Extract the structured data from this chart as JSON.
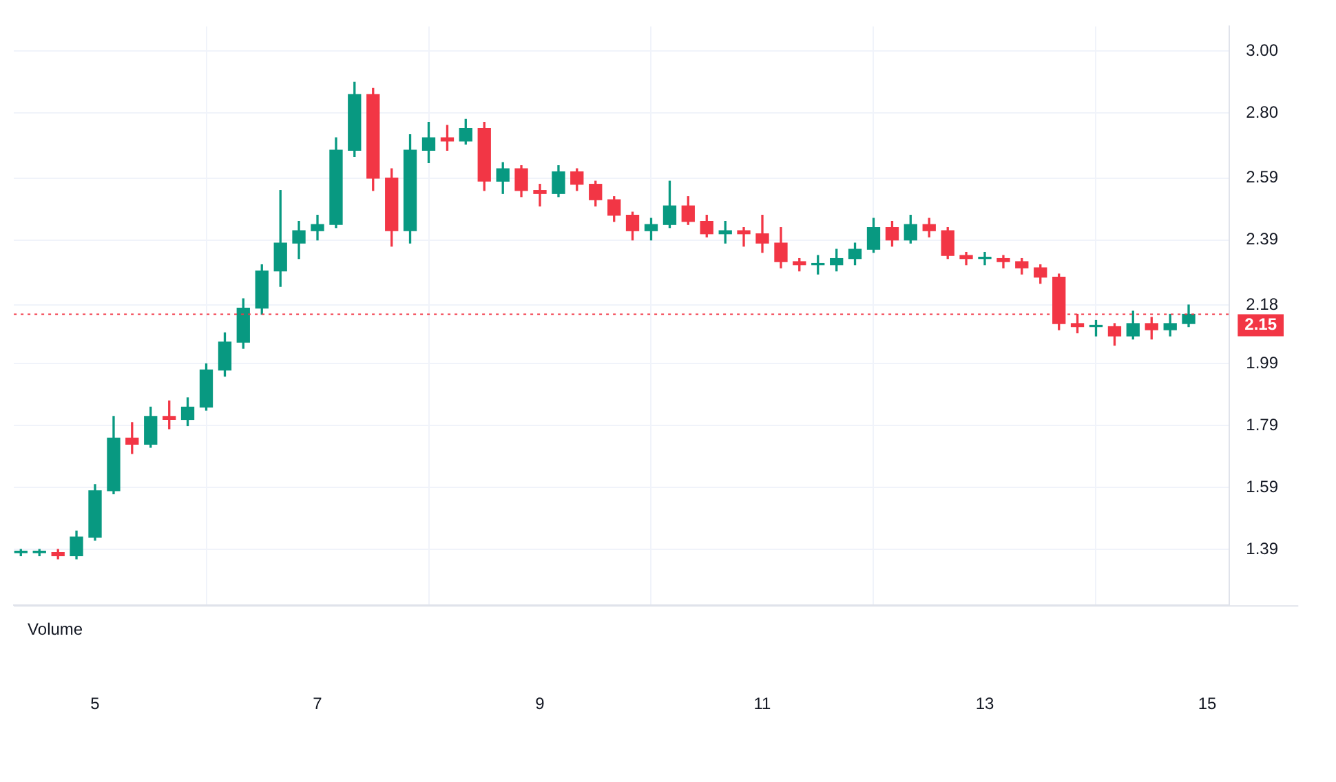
{
  "chart_data": {
    "type": "candlestick",
    "x": [
      4.333,
      4.5,
      4.667,
      4.833,
      5,
      5.167,
      5.333,
      5.5,
      5.667,
      5.833,
      6,
      6.167,
      6.333,
      6.5,
      6.667,
      6.833,
      7,
      7.167,
      7.333,
      7.5,
      7.667,
      7.833,
      8,
      8.167,
      8.333,
      8.5,
      8.667,
      8.833,
      9,
      9.167,
      9.333,
      9.5,
      9.667,
      9.833,
      10,
      10.167,
      10.333,
      10.5,
      10.667,
      10.833,
      11,
      11.167,
      11.333,
      11.5,
      11.667,
      11.833,
      12,
      12.167,
      12.333,
      12.5,
      12.667,
      12.833,
      13,
      13.167,
      13.333,
      13.5,
      13.667,
      13.833,
      14,
      14.167,
      14.333,
      14.5,
      14.667,
      14.833
    ],
    "ohlc": [
      [
        1.38,
        1.39,
        1.37,
        1.38
      ],
      [
        1.38,
        1.39,
        1.37,
        1.38
      ],
      [
        1.38,
        1.39,
        1.36,
        1.37
      ],
      [
        1.37,
        1.45,
        1.36,
        1.43
      ],
      [
        1.43,
        1.6,
        1.42,
        1.58
      ],
      [
        1.58,
        1.82,
        1.57,
        1.75
      ],
      [
        1.75,
        1.8,
        1.7,
        1.73
      ],
      [
        1.73,
        1.85,
        1.72,
        1.82
      ],
      [
        1.82,
        1.87,
        1.78,
        1.81
      ],
      [
        1.81,
        1.88,
        1.79,
        1.85
      ],
      [
        1.85,
        1.99,
        1.84,
        1.97
      ],
      [
        1.97,
        2.09,
        1.95,
        2.06
      ],
      [
        2.06,
        2.2,
        2.04,
        2.17
      ],
      [
        2.17,
        2.31,
        2.15,
        2.29
      ],
      [
        2.29,
        2.55,
        2.24,
        2.38
      ],
      [
        2.38,
        2.45,
        2.33,
        2.42
      ],
      [
        2.42,
        2.47,
        2.39,
        2.44
      ],
      [
        2.44,
        2.72,
        2.43,
        2.68
      ],
      [
        2.68,
        2.9,
        2.66,
        2.86
      ],
      [
        2.86,
        2.88,
        2.55,
        2.59
      ],
      [
        2.59,
        2.62,
        2.37,
        2.42
      ],
      [
        2.42,
        2.73,
        2.38,
        2.68
      ],
      [
        2.68,
        2.77,
        2.64,
        2.72
      ],
      [
        2.72,
        2.76,
        2.68,
        2.71
      ],
      [
        2.71,
        2.78,
        2.7,
        2.75
      ],
      [
        2.75,
        2.77,
        2.55,
        2.58
      ],
      [
        2.58,
        2.64,
        2.54,
        2.62
      ],
      [
        2.62,
        2.63,
        2.53,
        2.55
      ],
      [
        2.55,
        2.57,
        2.5,
        2.54
      ],
      [
        2.54,
        2.63,
        2.53,
        2.61
      ],
      [
        2.61,
        2.62,
        2.55,
        2.57
      ],
      [
        2.57,
        2.58,
        2.5,
        2.52
      ],
      [
        2.52,
        2.53,
        2.45,
        2.47
      ],
      [
        2.47,
        2.48,
        2.39,
        2.42
      ],
      [
        2.42,
        2.46,
        2.39,
        2.44
      ],
      [
        2.44,
        2.58,
        2.43,
        2.5
      ],
      [
        2.5,
        2.53,
        2.44,
        2.45
      ],
      [
        2.45,
        2.47,
        2.4,
        2.41
      ],
      [
        2.41,
        2.45,
        2.38,
        2.42
      ],
      [
        2.42,
        2.43,
        2.37,
        2.41
      ],
      [
        2.41,
        2.47,
        2.35,
        2.38
      ],
      [
        2.38,
        2.43,
        2.3,
        2.32
      ],
      [
        2.32,
        2.33,
        2.29,
        2.31
      ],
      [
        2.31,
        2.34,
        2.28,
        2.31
      ],
      [
        2.31,
        2.36,
        2.29,
        2.33
      ],
      [
        2.33,
        2.38,
        2.31,
        2.36
      ],
      [
        2.36,
        2.46,
        2.35,
        2.43
      ],
      [
        2.43,
        2.45,
        2.37,
        2.39
      ],
      [
        2.39,
        2.47,
        2.38,
        2.44
      ],
      [
        2.44,
        2.46,
        2.4,
        2.42
      ],
      [
        2.42,
        2.43,
        2.33,
        2.34
      ],
      [
        2.34,
        2.35,
        2.31,
        2.33
      ],
      [
        2.33,
        2.35,
        2.31,
        2.33
      ],
      [
        2.33,
        2.34,
        2.3,
        2.32
      ],
      [
        2.32,
        2.33,
        2.28,
        2.3
      ],
      [
        2.3,
        2.31,
        2.25,
        2.27
      ],
      [
        2.27,
        2.28,
        2.1,
        2.12
      ],
      [
        2.12,
        2.15,
        2.09,
        2.11
      ],
      [
        2.11,
        2.13,
        2.08,
        2.11
      ],
      [
        2.11,
        2.12,
        2.05,
        2.08
      ],
      [
        2.08,
        2.16,
        2.07,
        2.12
      ],
      [
        2.12,
        2.14,
        2.07,
        2.1
      ],
      [
        2.1,
        2.15,
        2.08,
        2.12
      ],
      [
        2.12,
        2.18,
        2.11,
        2.15
      ]
    ],
    "xlim": [
      4.27,
      15.2
    ],
    "xticks": [
      5,
      7,
      9,
      11,
      13,
      15
    ],
    "ylim": [
      1.21,
      3.08
    ],
    "yticks": [
      {
        "value": 1.39,
        "label": "1.39"
      },
      {
        "value": 1.59,
        "label": "1.59"
      },
      {
        "value": 1.79,
        "label": "1.79"
      },
      {
        "value": 1.99,
        "label": "1.99"
      },
      {
        "value": 2.18,
        "label": "2.18"
      },
      {
        "value": 2.39,
        "label": "2.39"
      },
      {
        "value": 2.59,
        "label": "2.59"
      },
      {
        "value": 2.8,
        "label": "2.80"
      },
      {
        "value": 3,
        "label": "3.00"
      }
    ],
    "colors": [
      "#089981",
      "#089981",
      "#f23645",
      "#089981",
      "#089981",
      "#089981",
      "#f23645",
      "#089981",
      "#f23645",
      "#089981",
      "#089981",
      "#089981",
      "#089981",
      "#089981",
      "#089981",
      "#089981",
      "#089981",
      "#089981",
      "#089981",
      "#f23645",
      "#f23645",
      "#089981",
      "#089981",
      "#f23645",
      "#089981",
      "#f23645",
      "#089981",
      "#f23645",
      "#f23645",
      "#089981",
      "#f23645",
      "#f23645",
      "#f23645",
      "#f23645",
      "#089981",
      "#089981",
      "#f23645",
      "#f23645",
      "#089981",
      "#f23645",
      "#f23645",
      "#f23645",
      "#f23645",
      "#089981",
      "#089981",
      "#089981",
      "#089981",
      "#f23645",
      "#089981",
      "#f23645",
      "#f23645",
      "#f23645",
      "#089981",
      "#f23645",
      "#f23645",
      "#f23645",
      "#f23645",
      "#f23645",
      "#089981",
      "#f23645",
      "#089981",
      "#f23645",
      "#089981",
      "#089981"
    ],
    "ref_lines": [
      {
        "axis": "y",
        "value": 2.15,
        "label": "2.15",
        "color": "#f23645",
        "line_style": "dotted"
      }
    ],
    "annotations": [
      "Volume"
    ],
    "grid": true,
    "legend": false
  }
}
